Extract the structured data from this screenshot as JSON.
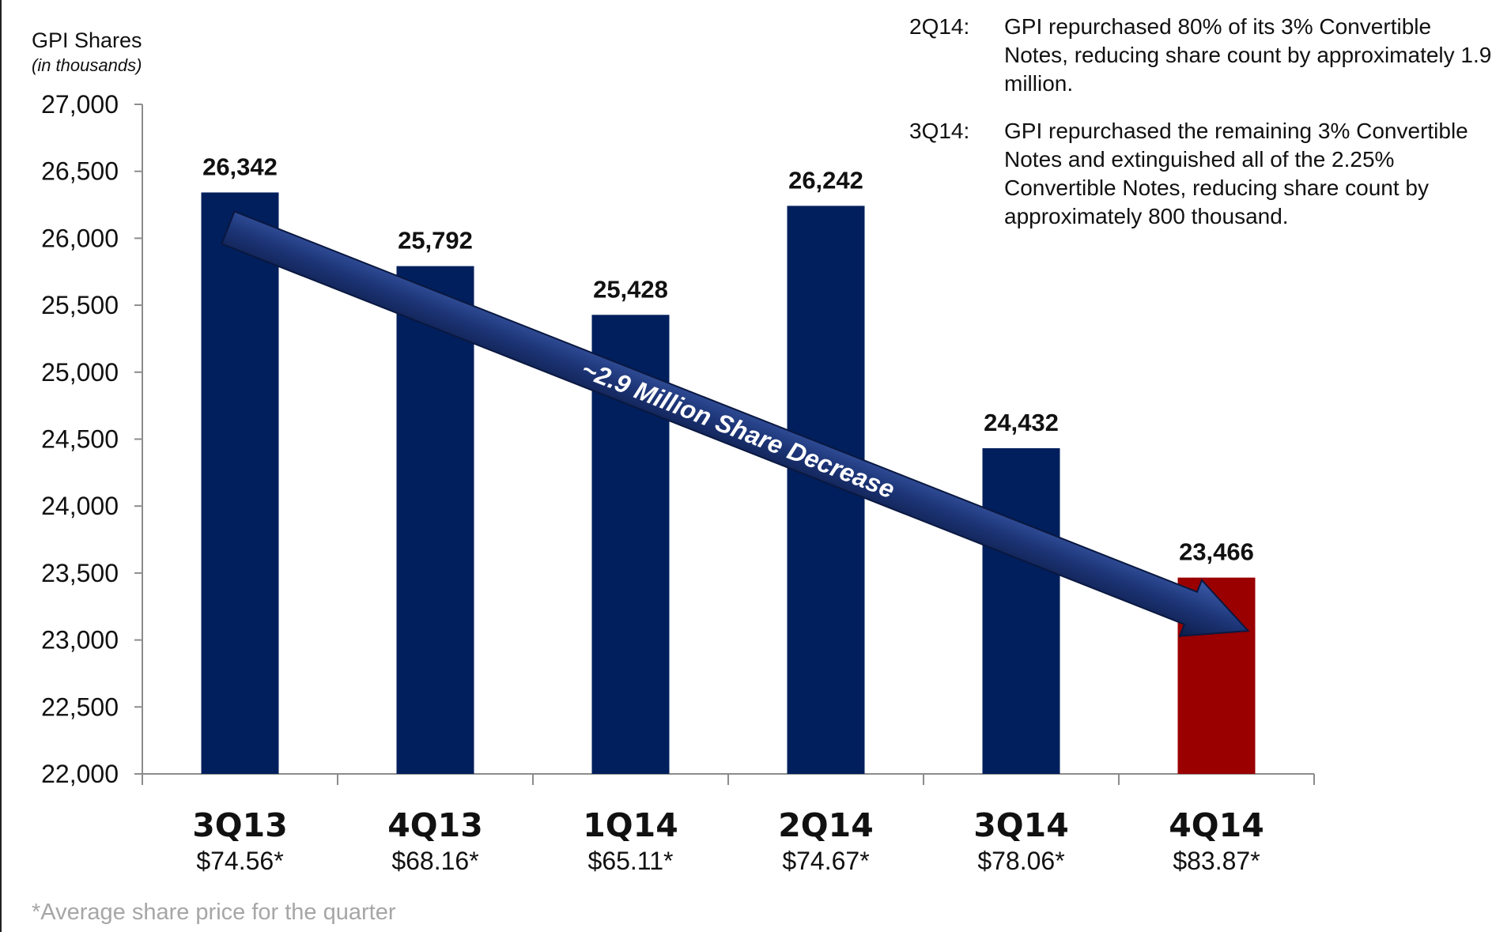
{
  "y_title": "GPI Shares",
  "y_subtitle": "(in thousands)",
  "notes": [
    {
      "quarter": "2Q14:",
      "text": "GPI repurchased 80% of its 3% Convertible Notes, reducing share count by approximately 1.9 million."
    },
    {
      "quarter": "3Q14:",
      "text": "GPI repurchased the remaining 3% Convertible Notes and extinguished all of the 2.25% Convertible Notes, reducing share count by approximately 800 thousand."
    }
  ],
  "arrow_label": "~2.9 Million Share Decrease",
  "footnote": "*Average share price for the quarter",
  "colors": {
    "bar": "#001f5c",
    "highlight": "#9a0000",
    "arrow": "#1f3a7a"
  },
  "chart_data": {
    "type": "bar",
    "categories": [
      "3Q13",
      "4Q13",
      "1Q14",
      "2Q14",
      "3Q14",
      "4Q14"
    ],
    "values": [
      26342,
      25792,
      25428,
      26242,
      24432,
      23466
    ],
    "value_labels": [
      "26,342",
      "25,792",
      "25,428",
      "26,242",
      "24,432",
      "23,466"
    ],
    "prices": [
      "$74.56*",
      "$68.16*",
      "$65.11*",
      "$74.67*",
      "$78.06*",
      "$83.87*"
    ],
    "highlight_index": 5,
    "ylim": [
      22000,
      27000
    ],
    "yticks": [
      22000,
      22500,
      23000,
      23500,
      24000,
      24500,
      25000,
      25500,
      26000,
      26500,
      27000
    ],
    "ytick_labels": [
      "22,000",
      "22,500",
      "23,000",
      "23,500",
      "24,000",
      "24,500",
      "25,000",
      "25,500",
      "26,000",
      "26,500",
      "27,000"
    ],
    "grid": false,
    "legend": "none"
  }
}
